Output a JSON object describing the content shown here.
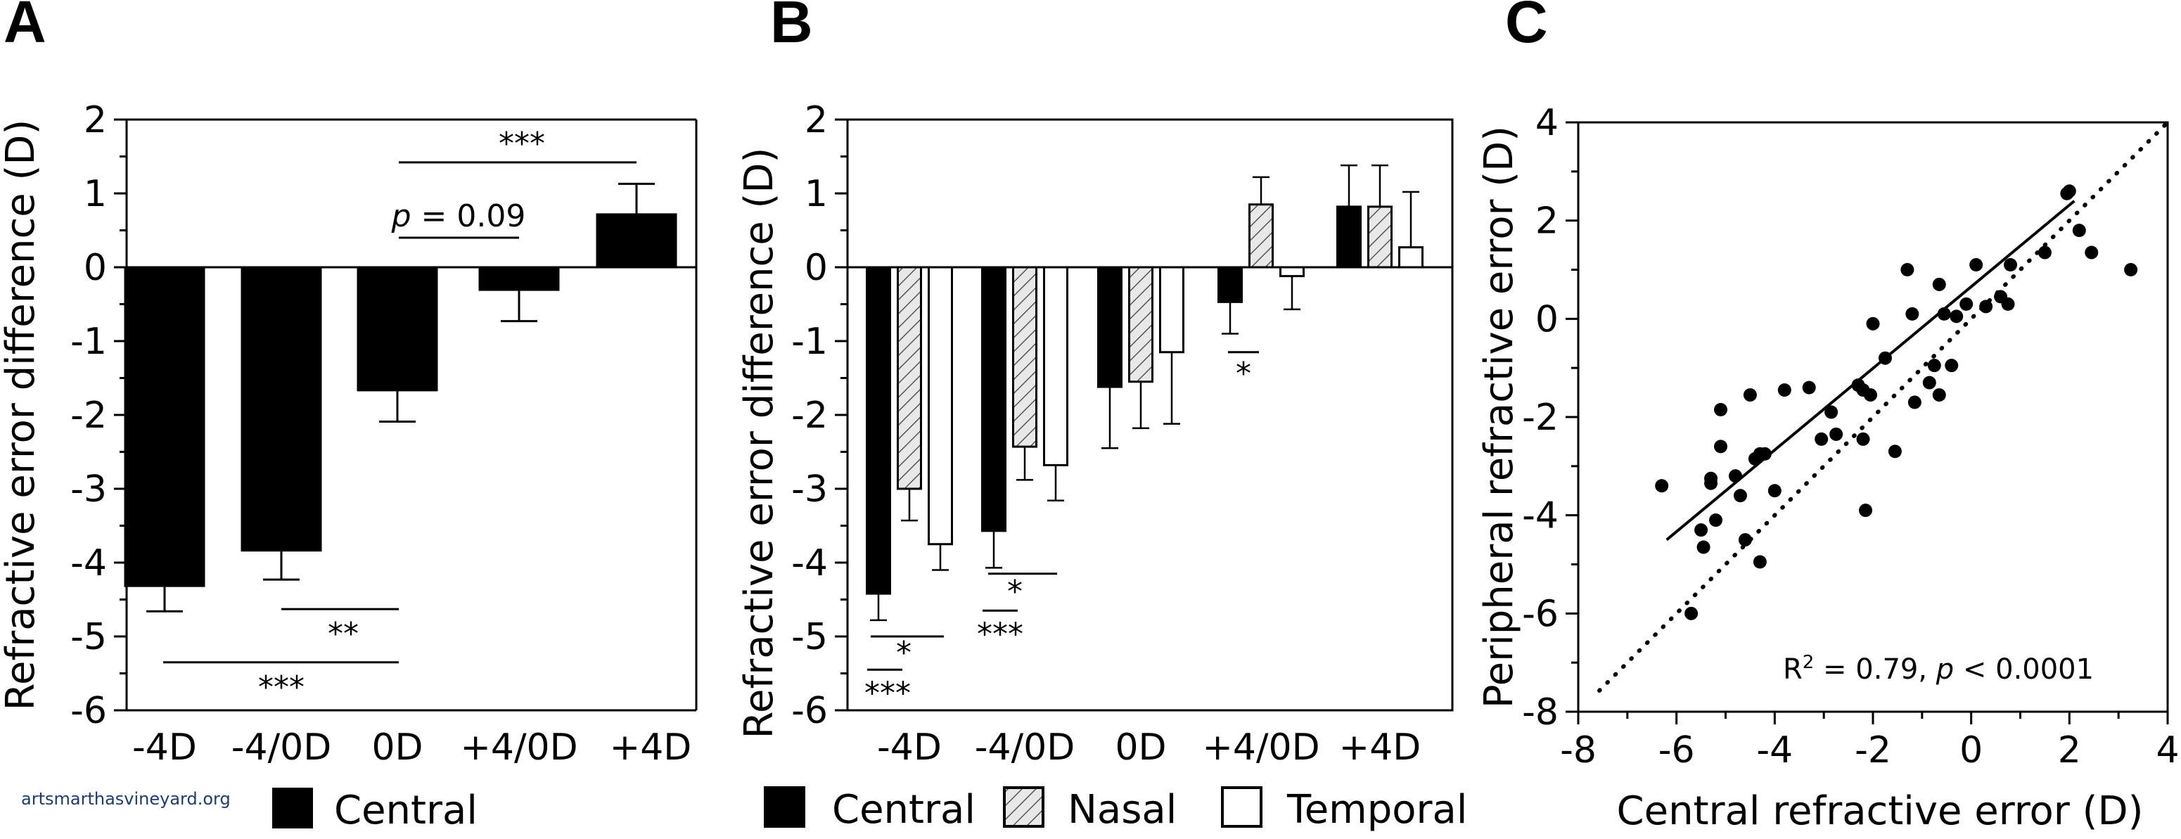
{
  "watermark": "artsmarthasvineyard.org",
  "colors": {
    "black": "#000000",
    "white": "#ffffff",
    "hatch_bg": "#e8e8e8",
    "hatch_line": "#555555"
  },
  "chart_data": [
    {
      "panel": "A",
      "type": "bar",
      "ylabel": "Refractive error difference (D)",
      "ylim": [
        -6,
        2
      ],
      "yticks": [
        "2",
        "1",
        "0",
        "-1",
        "-2",
        "-3",
        "-4",
        "-5",
        "-6"
      ],
      "categories": [
        "-4D",
        "-4/0D",
        "0D",
        "+4/0D",
        "+4D"
      ],
      "series": [
        {
          "name": "Central",
          "values": [
            -4.33,
            -3.85,
            -1.68,
            -0.32,
            0.73
          ],
          "errors": [
            0.33,
            0.38,
            0.41,
            0.41,
            0.4
          ]
        }
      ],
      "legend": [
        "Central"
      ],
      "annotations": [
        {
          "text": "***",
          "from": 0,
          "to": 2,
          "y": -5.35
        },
        {
          "text": "**",
          "from": 1,
          "to": 2,
          "y": -4.63
        },
        {
          "text": "***",
          "from": 2,
          "to": 4,
          "y": 1.42
        },
        {
          "text_prefix": "p",
          "text": " = 0.09",
          "from": 2,
          "to": 3,
          "y": 0.4
        }
      ]
    },
    {
      "panel": "B",
      "type": "bar",
      "ylabel": "Refractive error difference (D)",
      "ylim": [
        -6,
        2
      ],
      "yticks": [
        "2",
        "1",
        "0",
        "-1",
        "-2",
        "-3",
        "-4",
        "-5",
        "-6"
      ],
      "categories": [
        "-4D",
        "-4/0D",
        "0D",
        "+4/0D",
        "+4D"
      ],
      "series": [
        {
          "name": "Central",
          "values": [
            -4.42,
            -3.57,
            -1.62,
            -0.47,
            0.82
          ],
          "errors": [
            0.36,
            0.5,
            0.83,
            0.43,
            0.56
          ]
        },
        {
          "name": "Nasal",
          "values": [
            -3.0,
            -2.43,
            -1.55,
            0.85,
            0.82
          ],
          "errors": [
            0.43,
            0.45,
            0.63,
            0.37,
            0.56
          ]
        },
        {
          "name": "Temporal",
          "values": [
            -3.75,
            -2.68,
            -1.15,
            -0.12,
            0.27
          ],
          "errors": [
            0.35,
            0.48,
            0.97,
            0.45,
            0.75
          ]
        }
      ],
      "legend": [
        "Central",
        "Nasal",
        "Temporal"
      ],
      "annotations": [
        {
          "text": "***",
          "group": 0,
          "y": -5.45
        },
        {
          "text": "*",
          "group": 0,
          "y": -5.0
        },
        {
          "text": "***",
          "group": 1,
          "y": -4.65
        },
        {
          "text": "*",
          "group": 1,
          "y": -4.15
        },
        {
          "text": "*",
          "group": 3,
          "y": -1.15
        }
      ]
    },
    {
      "panel": "C",
      "type": "scatter",
      "xlabel": "Central refractive error (D)",
      "ylabel": "Peripheral refractive error (D)",
      "xlim": [
        -8,
        4
      ],
      "ylim": [
        -8,
        4
      ],
      "xticks": [
        "-8",
        "-6",
        "-4",
        "-2",
        "0",
        "2",
        "4"
      ],
      "yticks": [
        "4",
        "2",
        "0",
        "-2",
        "-4",
        "-6",
        "-8"
      ],
      "fit_line": {
        "x": [
          -6.2,
          2.1
        ],
        "y": [
          -4.5,
          2.4
        ]
      },
      "identity_line": {
        "x": [
          -8,
          4
        ],
        "y": [
          -8,
          4
        ]
      },
      "stat": {
        "r2_prefix": "R",
        "r2_sup": "2",
        "r2_value": " = 0.79, ",
        "p_label": "p",
        "p_value": " < 0.0001"
      },
      "points": [
        [
          -6.3,
          -3.4
        ],
        [
          -5.7,
          -6.0
        ],
        [
          -5.5,
          -4.3
        ],
        [
          -5.45,
          -4.65
        ],
        [
          -5.3,
          -3.35
        ],
        [
          -5.3,
          -3.25
        ],
        [
          -5.2,
          -4.1
        ],
        [
          -5.1,
          -1.85
        ],
        [
          -5.1,
          -2.6
        ],
        [
          -4.8,
          -3.2
        ],
        [
          -4.7,
          -3.6
        ],
        [
          -4.6,
          -4.5
        ],
        [
          -4.5,
          -1.55
        ],
        [
          -4.4,
          -2.85
        ],
        [
          -4.3,
          -2.75
        ],
        [
          -4.3,
          -4.95
        ],
        [
          -4.2,
          -2.75
        ],
        [
          -4.0,
          -3.5
        ],
        [
          -3.8,
          -1.45
        ],
        [
          -3.3,
          -1.4
        ],
        [
          -3.05,
          -2.45
        ],
        [
          -2.85,
          -1.9
        ],
        [
          -2.75,
          -2.35
        ],
        [
          -2.3,
          -1.35
        ],
        [
          -2.2,
          -1.45
        ],
        [
          -2.2,
          -2.45
        ],
        [
          -2.15,
          -3.9
        ],
        [
          -2.05,
          -1.55
        ],
        [
          -2.0,
          -0.1
        ],
        [
          -1.55,
          -2.7
        ],
        [
          -1.75,
          -0.8
        ],
        [
          -1.3,
          1.0
        ],
        [
          -1.2,
          0.1
        ],
        [
          -1.15,
          -1.7
        ],
        [
          -0.85,
          -1.3
        ],
        [
          -0.75,
          -0.95
        ],
        [
          -0.65,
          0.7
        ],
        [
          -0.65,
          -1.55
        ],
        [
          -0.55,
          0.1
        ],
        [
          -0.4,
          -0.95
        ],
        [
          -0.3,
          0.05
        ],
        [
          -0.1,
          0.3
        ],
        [
          0.1,
          1.1
        ],
        [
          0.3,
          0.25
        ],
        [
          0.6,
          0.45
        ],
        [
          0.75,
          0.3
        ],
        [
          0.8,
          1.1
        ],
        [
          1.5,
          1.35
        ],
        [
          1.95,
          2.55
        ],
        [
          2.0,
          2.6
        ],
        [
          2.2,
          1.8
        ],
        [
          2.45,
          1.35
        ],
        [
          3.25,
          1.0
        ]
      ]
    }
  ]
}
